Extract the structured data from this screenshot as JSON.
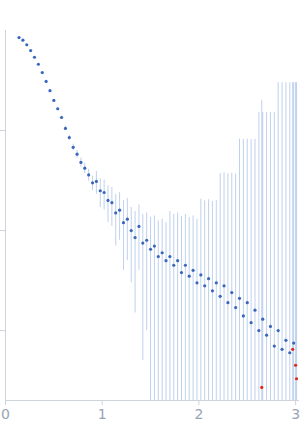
{
  "chart_data": {
    "type": "scatter",
    "log": "y",
    "tick_labels": "x",
    "grid": false,
    "xlim": [
      0,
      3.03
    ],
    "xticks": [
      0,
      1,
      2,
      3
    ],
    "ylim": [
      0.002,
      10
    ],
    "yticks": [
      0.01,
      0.1,
      1
    ],
    "series": [
      {
        "color": "#3b66bd",
        "marker": "circle",
        "x": [
          0.14,
          0.18,
          0.22,
          0.26,
          0.3,
          0.34,
          0.38,
          0.42,
          0.46,
          0.5,
          0.54,
          0.58,
          0.62,
          0.66,
          0.7,
          0.74,
          0.78,
          0.82,
          0.86,
          0.9,
          0.94,
          0.98,
          1.02,
          1.06,
          1.1,
          1.14,
          1.18,
          1.22,
          1.26,
          1.3,
          1.34,
          1.38,
          1.42,
          1.46,
          1.5,
          1.54,
          1.58,
          1.62,
          1.66,
          1.7,
          1.74,
          1.78,
          1.82,
          1.86,
          1.9,
          1.94,
          1.98,
          2.02,
          2.06,
          2.1,
          2.14,
          2.18,
          2.22,
          2.26,
          2.3,
          2.34,
          2.38,
          2.42,
          2.46,
          2.5,
          2.54,
          2.58,
          2.62,
          2.66,
          2.7,
          2.74,
          2.78,
          2.82,
          2.86,
          2.9,
          2.94,
          2.98
        ],
        "values": [
          8.5,
          8.0,
          7.2,
          6.3,
          5.4,
          4.6,
          3.8,
          3.1,
          2.5,
          2.0,
          1.65,
          1.35,
          1.05,
          0.85,
          0.68,
          0.58,
          0.48,
          0.42,
          0.36,
          0.3,
          0.31,
          0.25,
          0.24,
          0.2,
          0.19,
          0.15,
          0.16,
          0.12,
          0.13,
          0.1,
          0.085,
          0.11,
          0.075,
          0.08,
          0.065,
          0.07,
          0.055,
          0.06,
          0.05,
          0.055,
          0.045,
          0.05,
          0.038,
          0.045,
          0.035,
          0.04,
          0.03,
          0.036,
          0.028,
          0.033,
          0.025,
          0.03,
          0.022,
          0.028,
          0.019,
          0.024,
          0.017,
          0.021,
          0.014,
          0.019,
          0.012,
          0.016,
          0.01,
          0.013,
          0.009,
          0.011,
          0.007,
          0.01,
          0.0065,
          0.008,
          0.006,
          0.0075
        ],
        "errors": [
          0.03,
          0.03,
          0.03,
          0.03,
          0.03,
          0.03,
          0.04,
          0.04,
          0.04,
          0.04,
          0.05,
          0.05,
          0.05,
          0.05,
          0.05,
          0.05,
          0.05,
          0.05,
          0.05,
          0.05,
          0.08,
          0.08,
          0.08,
          0.08,
          0.08,
          0.08,
          0.08,
          0.08,
          0.08,
          0.07,
          0.07,
          0.07,
          0.07,
          0.07,
          0.07,
          0.07,
          0.07,
          0.07,
          0.07,
          0.1,
          0.1,
          0.1,
          0.1,
          0.1,
          0.1,
          0.1,
          0.1,
          0.17,
          0.17,
          0.17,
          0.17,
          0.17,
          0.35,
          0.35,
          0.35,
          0.35,
          0.35,
          0.8,
          0.8,
          0.8,
          0.8,
          0.8,
          1.5,
          1.5,
          1.5,
          1.5,
          1.5,
          3,
          3,
          3,
          3,
          3
        ]
      },
      {
        "color": "#e0271f",
        "marker": "circle",
        "x": [
          2.65,
          2.97,
          3.0,
          3.01
        ],
        "values": [
          0.0027,
          0.0065,
          0.0045,
          0.0033
        ],
        "errors": [
          2,
          3,
          3,
          3
        ]
      }
    ]
  }
}
